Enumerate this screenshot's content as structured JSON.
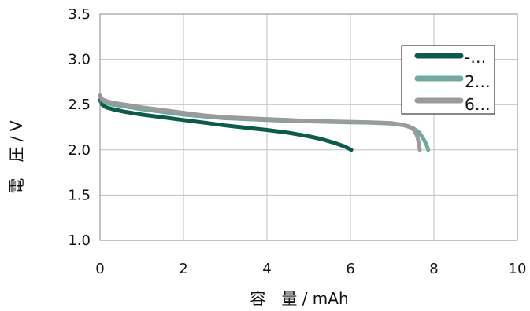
{
  "chart_data": {
    "type": "line",
    "xlabel": "容　量 / mAh",
    "ylabel": "電　圧 / V",
    "xlim": [
      0,
      10
    ],
    "ylim": [
      1.0,
      3.5
    ],
    "x_ticks": [
      "0",
      "2",
      "4",
      "6",
      "8",
      "10"
    ],
    "y_ticks": [
      "1.0",
      "1.5",
      "2.0",
      "2.5",
      "3.0",
      "3.5"
    ],
    "grid": true,
    "legend_position": "top-right",
    "series": [
      {
        "name": "-…",
        "color": "#0d5c4a",
        "x": [
          0.0,
          0.05,
          0.15,
          0.3,
          0.6,
          1.0,
          1.5,
          2.0,
          2.5,
          3.0,
          3.5,
          4.0,
          4.5,
          5.0,
          5.3,
          5.6,
          5.85,
          6.02
        ],
        "y": [
          2.55,
          2.5,
          2.47,
          2.45,
          2.42,
          2.39,
          2.36,
          2.33,
          2.3,
          2.27,
          2.245,
          2.22,
          2.19,
          2.15,
          2.12,
          2.08,
          2.04,
          2.0
        ]
      },
      {
        "name": "2…",
        "color": "#72a8a0",
        "x": [
          0.0,
          0.05,
          0.15,
          0.3,
          0.6,
          1.0,
          1.5,
          2.0,
          2.5,
          3.0,
          3.5,
          4.0,
          4.5,
          5.0,
          5.5,
          6.0,
          6.5,
          7.0,
          7.3,
          7.5,
          7.65,
          7.75,
          7.82,
          7.86
        ],
        "y": [
          2.6,
          2.55,
          2.52,
          2.5,
          2.48,
          2.45,
          2.42,
          2.39,
          2.37,
          2.35,
          2.34,
          2.33,
          2.32,
          2.315,
          2.31,
          2.305,
          2.3,
          2.29,
          2.27,
          2.24,
          2.19,
          2.12,
          2.06,
          2.0
        ]
      },
      {
        "name": "6…",
        "color": "#9b9b9b",
        "x": [
          0.0,
          0.05,
          0.15,
          0.3,
          0.6,
          1.0,
          1.5,
          2.0,
          2.5,
          3.0,
          3.5,
          4.0,
          4.5,
          5.0,
          5.5,
          6.0,
          6.5,
          7.0,
          7.2,
          7.4,
          7.52,
          7.6,
          7.64,
          7.66
        ],
        "y": [
          2.6,
          2.56,
          2.54,
          2.52,
          2.5,
          2.47,
          2.44,
          2.41,
          2.38,
          2.36,
          2.35,
          2.34,
          2.33,
          2.32,
          2.315,
          2.31,
          2.305,
          2.295,
          2.28,
          2.26,
          2.22,
          2.15,
          2.07,
          2.0
        ]
      }
    ]
  }
}
